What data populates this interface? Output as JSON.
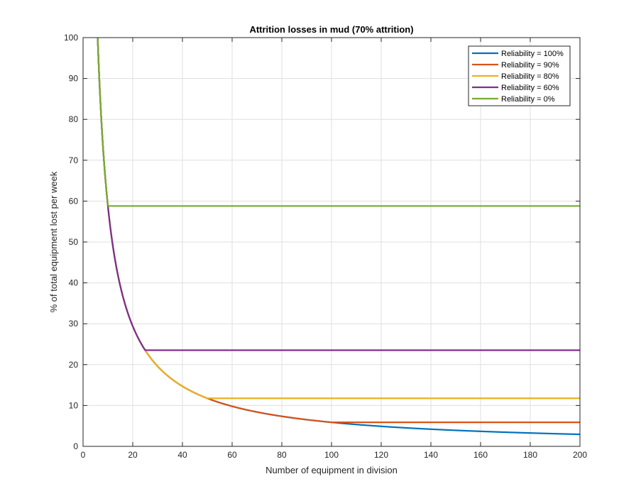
{
  "chart_data": {
    "type": "line",
    "title": "Attrition losses in mud (70% attrition)",
    "xlabel": "Number of equipment in division",
    "ylabel": "% of total equipment lost per week",
    "xlim": [
      0,
      200
    ],
    "ylim": [
      0,
      100
    ],
    "xticks": [
      0,
      20,
      40,
      60,
      80,
      100,
      120,
      140,
      160,
      180,
      200
    ],
    "yticks": [
      0,
      10,
      20,
      30,
      40,
      50,
      60,
      70,
      80,
      90,
      100
    ],
    "grid": true,
    "legend_position": "top-right",
    "series": [
      {
        "name": "Reliability = 100%",
        "color": "#0072BD",
        "curve": {
          "k": 588,
          "floor": 0,
          "cap": 100
        }
      },
      {
        "name": "Reliability = 90%",
        "color": "#D95319",
        "curve": {
          "k": 588,
          "floor": 5.88,
          "cap": 100
        }
      },
      {
        "name": "Reliability = 80%",
        "color": "#EDB120",
        "curve": {
          "k": 588,
          "floor": 11.76,
          "cap": 100
        }
      },
      {
        "name": "Reliability = 60%",
        "color": "#7E2F8E",
        "curve": {
          "k": 588,
          "floor": 23.52,
          "cap": 100
        }
      },
      {
        "name": "Reliability = 0%",
        "color": "#77AC30",
        "curve": {
          "k": 588,
          "floor": 58.8,
          "cap": 100
        }
      }
    ]
  }
}
